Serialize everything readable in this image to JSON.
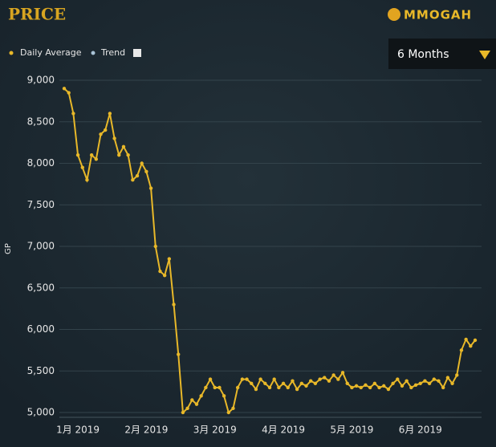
{
  "header": {
    "title": "PRICE",
    "logo": "MMOGAH",
    "dropdown": "6 Months"
  },
  "chart_data": {
    "type": "line",
    "y_label": "GP",
    "categories": [
      null,
      null,
      null,
      "1月 2019",
      null,
      null,
      null,
      null,
      null,
      null,
      null,
      null,
      null,
      null,
      null,
      null,
      null,
      null,
      "2月 2019",
      null,
      null,
      null,
      null,
      null,
      null,
      null,
      null,
      null,
      null,
      null,
      null,
      null,
      null,
      "3月 2019",
      null,
      null,
      null,
      null,
      null,
      null,
      null,
      null,
      null,
      null,
      null,
      null,
      null,
      null,
      "4月 2019",
      null,
      null,
      null,
      null,
      null,
      null,
      null,
      null,
      null,
      null,
      null,
      null,
      null,
      null,
      "5月 2019",
      null,
      null,
      null,
      null,
      null,
      null,
      null,
      null,
      null,
      null,
      null,
      null,
      null,
      null,
      "6月 2019",
      null,
      null,
      null,
      null,
      null,
      null,
      null,
      null,
      null,
      null,
      null,
      null
    ],
    "series": [
      {
        "name": "Daily Average",
        "color": "#e8b829",
        "values": [
          8900,
          8850,
          8600,
          8100,
          7950,
          7800,
          8100,
          8050,
          8350,
          8400,
          8600,
          8300,
          8100,
          8200,
          8100,
          7800,
          7850,
          8000,
          7900,
          7700,
          7000,
          6700,
          6650,
          6850,
          6300,
          5700,
          5000,
          5050,
          5150,
          5100,
          5200,
          5300,
          5400,
          5300,
          5300,
          5200,
          5000,
          5050,
          5300,
          5400,
          5400,
          5350,
          5280,
          5400,
          5350,
          5300,
          5400,
          5300,
          5350,
          5300,
          5380,
          5280,
          5350,
          5320,
          5380,
          5350,
          5400,
          5420,
          5380,
          5450,
          5400,
          5480,
          5350,
          5300,
          5320,
          5300,
          5330,
          5300,
          5350,
          5300,
          5320,
          5280,
          5350,
          5400,
          5320,
          5380,
          5300,
          5330,
          5350,
          5380,
          5350,
          5400,
          5380,
          5300,
          5420,
          5350,
          5450,
          5750,
          5880,
          5800,
          5870
        ]
      }
    ],
    "trend": {
      "name": "Trend",
      "color": "#a9c3d6"
    },
    "ylim": [
      5000,
      9000
    ],
    "yticks": [
      {
        "value": 5000,
        "label": "5,000"
      },
      {
        "value": 5500,
        "label": "5,500"
      },
      {
        "value": 6000,
        "label": "6,000"
      },
      {
        "value": 6500,
        "label": "6,500"
      },
      {
        "value": 7000,
        "label": "7,000"
      },
      {
        "value": 7500,
        "label": "7,500"
      },
      {
        "value": 8000,
        "label": "8,000"
      },
      {
        "value": 8500,
        "label": "8,500"
      },
      {
        "value": 9000,
        "label": "9,000"
      }
    ],
    "grid": true
  }
}
